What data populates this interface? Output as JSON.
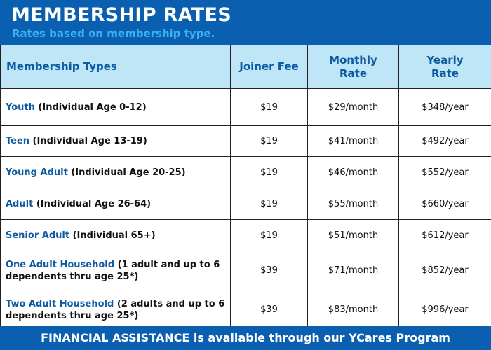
{
  "header": {
    "title": "MEMBERSHIP RATES",
    "subtitle": "Rates based on membership type."
  },
  "table": {
    "columns": {
      "type": "Membership Types",
      "joiner": "Joiner Fee",
      "monthly_line1": "Monthly",
      "monthly_line2": "Rate",
      "yearly_line1": "Yearly",
      "yearly_line2": "Rate"
    },
    "rows": [
      {
        "name": "Youth",
        "desc": " (Individual Age 0-12)",
        "joiner": "$19",
        "monthly": "$29/month",
        "yearly": "$348/year"
      },
      {
        "name": "Teen",
        "desc": " (Individual Age 13-19)",
        "joiner": "$19",
        "monthly": "$41/month",
        "yearly": "$492/year"
      },
      {
        "name": "Young Adult",
        "desc": " (Individual Age 20-25)",
        "joiner": "$19",
        "monthly": "$46/month",
        "yearly": "$552/year"
      },
      {
        "name": "Adult",
        "desc": " (Individual Age 26-64)",
        "joiner": "$19",
        "monthly": "$55/month",
        "yearly": "$660/year"
      },
      {
        "name": "Senior Adult",
        "desc": " (Individual 65+)",
        "joiner": "$19",
        "monthly": "$51/month",
        "yearly": "$612/year"
      },
      {
        "name": "One Adult Household",
        "desc": " (1 adult and up to 6 dependents thru age 25*)",
        "joiner": "$39",
        "monthly": "$71/month",
        "yearly": "$852/year"
      },
      {
        "name": "Two Adult Household",
        "desc": " (2 adults and up to 6 dependents thru age 25*)",
        "joiner": "$39",
        "monthly": "$83/month",
        "yearly": "$996/year"
      }
    ]
  },
  "footer": {
    "text": "FINANCIAL ASSISTANCE is available through our YCares Program"
  },
  "colors": {
    "brand_blue": "#0a5fb0",
    "header_row": "#bfe6f7",
    "accent_text": "#0e5aa3",
    "subtitle": "#39b4f0"
  }
}
